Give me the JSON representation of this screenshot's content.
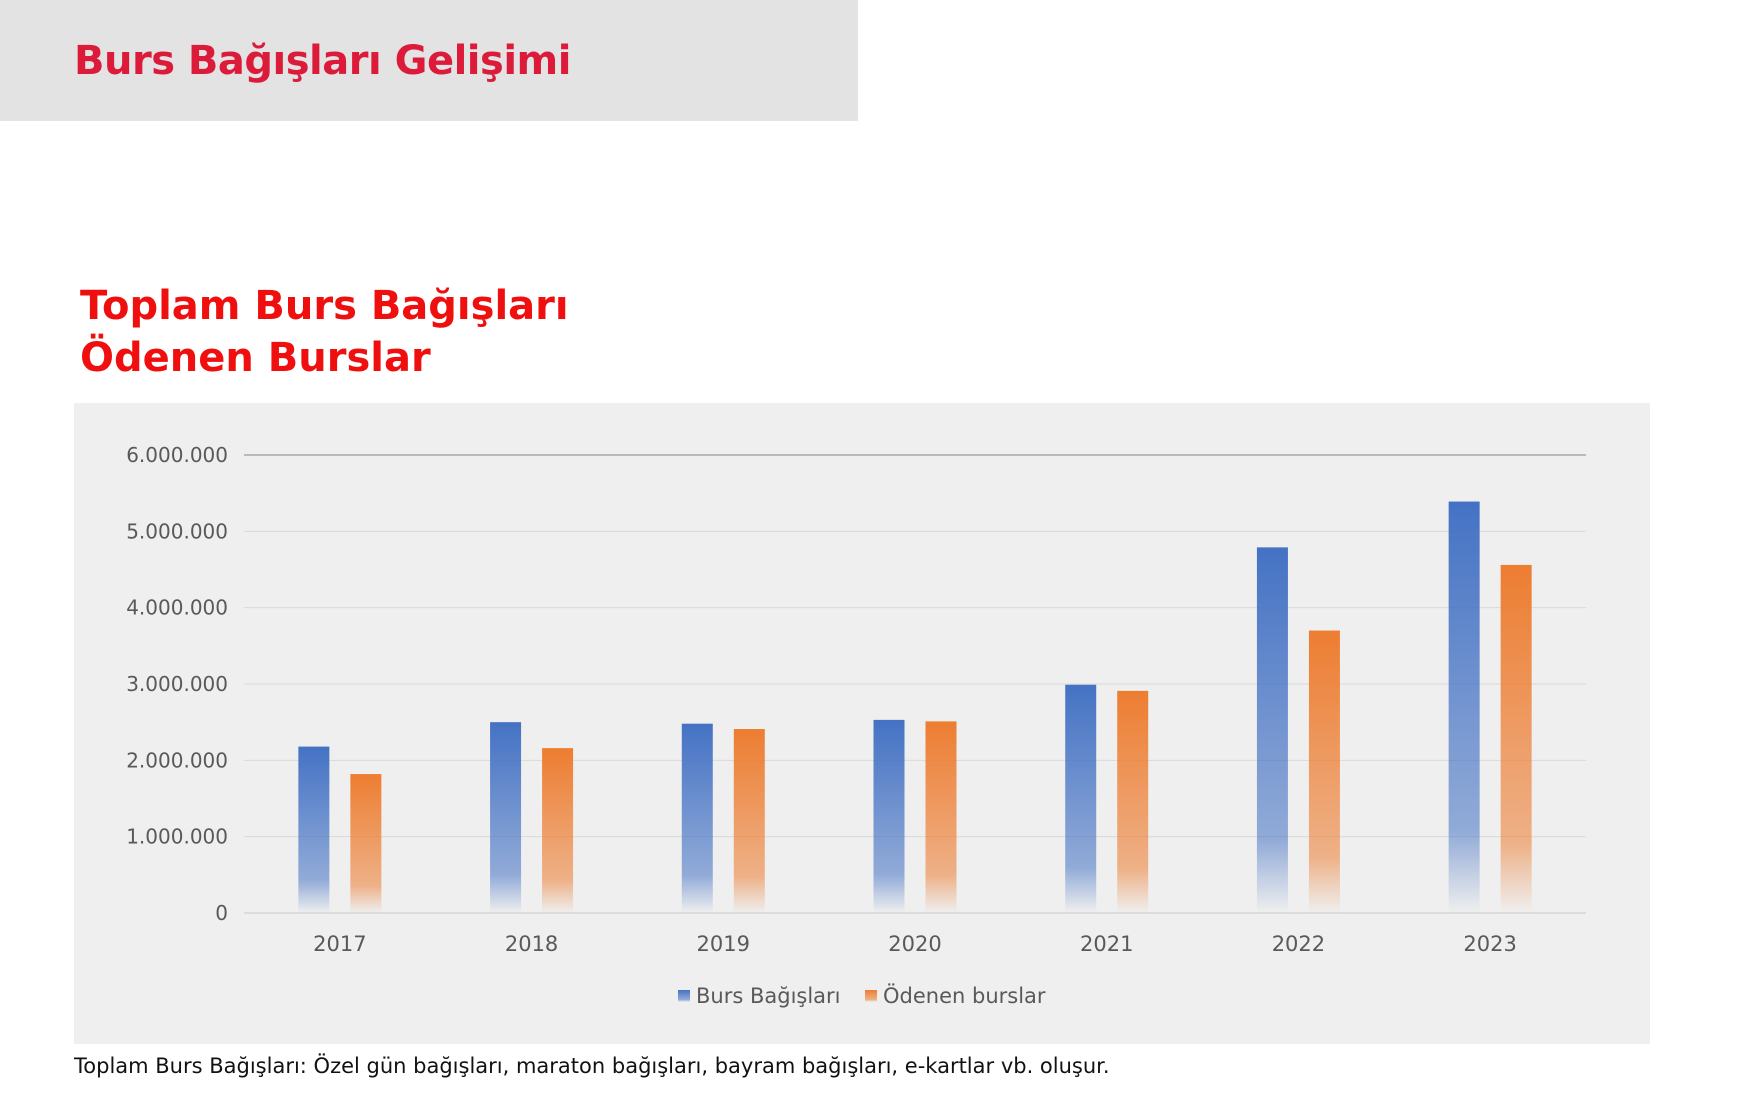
{
  "header": {
    "title": "Burs Bağışları Gelişimi"
  },
  "chart_heading": {
    "line1": "Toplam Burs Bağışları",
    "line2": "Ödenen Burslar"
  },
  "note": "Toplam Burs Bağışları: Özel gün bağışları, maraton bağışları, bayram bağışları, e-kartlar vb. oluşur.",
  "colors": {
    "header_title": "#dc1b3a",
    "chart_heading": "#ef0f0f",
    "series_1": "#4472c4",
    "series_2": "#ed7d31",
    "panel_bg": "#efefef"
  },
  "chart_data": {
    "type": "bar",
    "categories": [
      "2017",
      "2018",
      "2019",
      "2020",
      "2021",
      "2022",
      "2023"
    ],
    "series": [
      {
        "name": "Burs Bağışları",
        "values": [
          2180000,
          2500000,
          2480000,
          2530000,
          2990000,
          4790000,
          5390000
        ]
      },
      {
        "name": "Ödenen burslar",
        "values": [
          1820000,
          2160000,
          2410000,
          2510000,
          2910000,
          3700000,
          4560000
        ]
      }
    ],
    "ylim": [
      0,
      6000000
    ],
    "yticks": [
      0,
      1000000,
      2000000,
      3000000,
      4000000,
      5000000,
      6000000
    ],
    "ytick_labels": [
      "0",
      "1.000.000",
      "2.000.000",
      "3.000.000",
      "4.000.000",
      "5.000.000",
      "6.000.000"
    ],
    "grid": true,
    "legend_position": "bottom",
    "bar_fill": "vertical gradient fading to white at base"
  }
}
